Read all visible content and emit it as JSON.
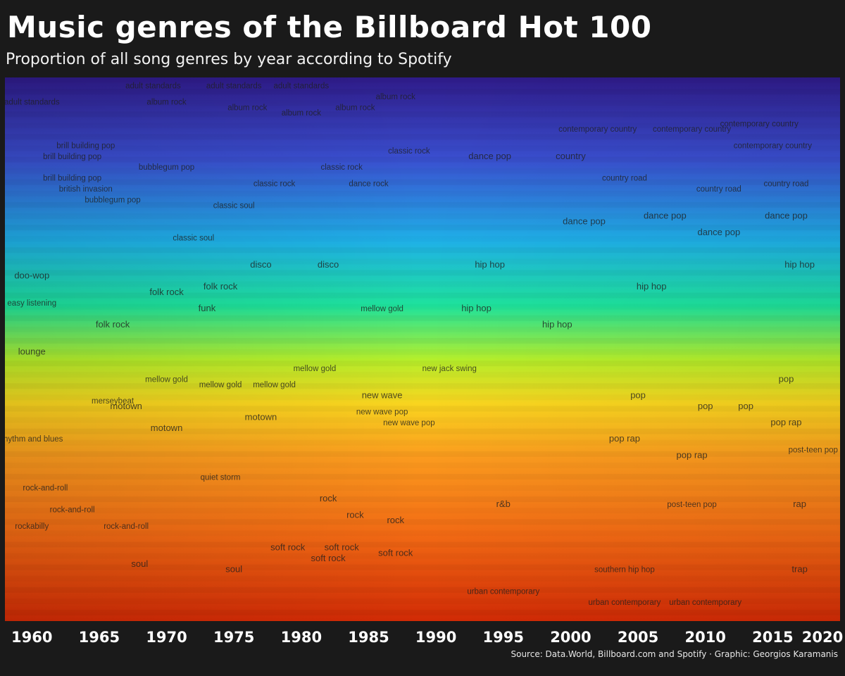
{
  "title": "Music genres of the Billboard Hot 100",
  "subtitle": "Proportion of all song genres by year according to Spotify",
  "source": "Source: Data.World, Billboard.com and Spotify · Graphic: Georgios Karamanis",
  "chart_data": {
    "type": "area",
    "title": "Music genres of the Billboard Hot 100",
    "subtitle": "Proportion of all song genres by year according to Spotify",
    "xlabel": "",
    "ylabel": "",
    "xlim": [
      1958,
      2020
    ],
    "ylim": [
      0,
      1
    ],
    "x_ticks": [
      1960,
      1965,
      1970,
      1975,
      1980,
      1985,
      1990,
      1995,
      2000,
      2005,
      2010,
      2015,
      2020
    ],
    "grid": false,
    "legend": "none",
    "color_scale": [
      "#2f1b8a",
      "#3a4fd0",
      "#1fb0e8",
      "#1ee39c",
      "#b7ef2a",
      "#f9d51f",
      "#fb9a1e",
      "#f26a14",
      "#d12a05"
    ],
    "labels": [
      {
        "text": "adult standards",
        "x": 1960,
        "y": 0.95
      },
      {
        "text": "adult standards",
        "x": 1969,
        "y": 0.98
      },
      {
        "text": "adult standards",
        "x": 1975,
        "y": 0.98
      },
      {
        "text": "adult standards",
        "x": 1980,
        "y": 0.98
      },
      {
        "text": "album rock",
        "x": 1970,
        "y": 0.95
      },
      {
        "text": "album rock",
        "x": 1976,
        "y": 0.94
      },
      {
        "text": "album rock",
        "x": 1980,
        "y": 0.93
      },
      {
        "text": "album rock",
        "x": 1984,
        "y": 0.94
      },
      {
        "text": "album rock",
        "x": 1987,
        "y": 0.96
      },
      {
        "text": "brill building pop",
        "x": 1964,
        "y": 0.87
      },
      {
        "text": "brill building pop",
        "x": 1963,
        "y": 0.85
      },
      {
        "text": "brill building pop",
        "x": 1963,
        "y": 0.81
      },
      {
        "text": "bubblegum pop",
        "x": 1970,
        "y": 0.83
      },
      {
        "text": "bubblegum pop",
        "x": 1966,
        "y": 0.77
      },
      {
        "text": "british invasion",
        "x": 1964,
        "y": 0.79
      },
      {
        "text": "classic rock",
        "x": 1983,
        "y": 0.83
      },
      {
        "text": "classic rock",
        "x": 1988,
        "y": 0.86
      },
      {
        "text": "classic rock",
        "x": 1978,
        "y": 0.8
      },
      {
        "text": "classic soul",
        "x": 1972,
        "y": 0.7
      },
      {
        "text": "classic soul",
        "x": 1975,
        "y": 0.76
      },
      {
        "text": "dance rock",
        "x": 1985,
        "y": 0.8
      },
      {
        "text": "dance pop",
        "x": 1994,
        "y": 0.85
      },
      {
        "text": "dance pop",
        "x": 2001,
        "y": 0.73
      },
      {
        "text": "dance pop",
        "x": 2007,
        "y": 0.74
      },
      {
        "text": "dance pop",
        "x": 2011,
        "y": 0.71
      },
      {
        "text": "dance pop",
        "x": 2016,
        "y": 0.74
      },
      {
        "text": "contemporary country",
        "x": 2002,
        "y": 0.9
      },
      {
        "text": "contemporary country",
        "x": 2009,
        "y": 0.9
      },
      {
        "text": "contemporary country",
        "x": 2014,
        "y": 0.91
      },
      {
        "text": "contemporary country",
        "x": 2015,
        "y": 0.87
      },
      {
        "text": "country road",
        "x": 2004,
        "y": 0.81
      },
      {
        "text": "country road",
        "x": 2011,
        "y": 0.79
      },
      {
        "text": "country road",
        "x": 2016,
        "y": 0.8
      },
      {
        "text": "country",
        "x": 2000,
        "y": 0.85
      },
      {
        "text": "disco",
        "x": 1982,
        "y": 0.65
      },
      {
        "text": "disco",
        "x": 1977,
        "y": 0.65
      },
      {
        "text": "folk rock",
        "x": 1970,
        "y": 0.6
      },
      {
        "text": "folk rock",
        "x": 1974,
        "y": 0.61
      },
      {
        "text": "folk rock",
        "x": 1966,
        "y": 0.54
      },
      {
        "text": "funk",
        "x": 1973,
        "y": 0.57
      },
      {
        "text": "doo-wop",
        "x": 1960,
        "y": 0.63
      },
      {
        "text": "easy listening",
        "x": 1960,
        "y": 0.58
      },
      {
        "text": "lounge",
        "x": 1960,
        "y": 0.49
      },
      {
        "text": "hip hop",
        "x": 1994,
        "y": 0.65
      },
      {
        "text": "hip hop",
        "x": 1993,
        "y": 0.57
      },
      {
        "text": "hip hop",
        "x": 1999,
        "y": 0.54
      },
      {
        "text": "hip hop",
        "x": 2006,
        "y": 0.61
      },
      {
        "text": "hip hop",
        "x": 2017,
        "y": 0.65
      },
      {
        "text": "mellow gold",
        "x": 1986,
        "y": 0.57
      },
      {
        "text": "mellow gold",
        "x": 1981,
        "y": 0.46
      },
      {
        "text": "mellow gold",
        "x": 1978,
        "y": 0.43
      },
      {
        "text": "mellow gold",
        "x": 1974,
        "y": 0.43
      },
      {
        "text": "mellow gold",
        "x": 1970,
        "y": 0.44
      },
      {
        "text": "new jack swing",
        "x": 1991,
        "y": 0.46
      },
      {
        "text": "new wave",
        "x": 1986,
        "y": 0.41
      },
      {
        "text": "new wave pop",
        "x": 1986,
        "y": 0.38
      },
      {
        "text": "new wave pop",
        "x": 1988,
        "y": 0.36
      },
      {
        "text": "merseybeat",
        "x": 1966,
        "y": 0.4
      },
      {
        "text": "motown",
        "x": 1967,
        "y": 0.39
      },
      {
        "text": "motown",
        "x": 1970,
        "y": 0.35
      },
      {
        "text": "motown",
        "x": 1977,
        "y": 0.37
      },
      {
        "text": "rhythm and blues",
        "x": 1960,
        "y": 0.33
      },
      {
        "text": "rock-and-roll",
        "x": 1961,
        "y": 0.24
      },
      {
        "text": "rock-and-roll",
        "x": 1963,
        "y": 0.2
      },
      {
        "text": "rock-and-roll",
        "x": 1967,
        "y": 0.17
      },
      {
        "text": "rockabilly",
        "x": 1960,
        "y": 0.17
      },
      {
        "text": "quiet storm",
        "x": 1974,
        "y": 0.26
      },
      {
        "text": "rock",
        "x": 1982,
        "y": 0.22
      },
      {
        "text": "rock",
        "x": 1984,
        "y": 0.19
      },
      {
        "text": "rock",
        "x": 1987,
        "y": 0.18
      },
      {
        "text": "soft rock",
        "x": 1979,
        "y": 0.13
      },
      {
        "text": "soft rock",
        "x": 1983,
        "y": 0.13
      },
      {
        "text": "soft rock",
        "x": 1987,
        "y": 0.12
      },
      {
        "text": "soft rock",
        "x": 1982,
        "y": 0.11
      },
      {
        "text": "soul",
        "x": 1968,
        "y": 0.1
      },
      {
        "text": "soul",
        "x": 1975,
        "y": 0.09
      },
      {
        "text": "pop",
        "x": 2005,
        "y": 0.41
      },
      {
        "text": "pop",
        "x": 2010,
        "y": 0.39
      },
      {
        "text": "pop",
        "x": 2013,
        "y": 0.39
      },
      {
        "text": "pop",
        "x": 2016,
        "y": 0.44
      },
      {
        "text": "pop rap",
        "x": 2004,
        "y": 0.33
      },
      {
        "text": "pop rap",
        "x": 2009,
        "y": 0.3
      },
      {
        "text": "pop rap",
        "x": 2016,
        "y": 0.36
      },
      {
        "text": "post-teen pop",
        "x": 2009,
        "y": 0.21
      },
      {
        "text": "post-teen pop",
        "x": 2018,
        "y": 0.31
      },
      {
        "text": "rap",
        "x": 2017,
        "y": 0.21
      },
      {
        "text": "trap",
        "x": 2017,
        "y": 0.09
      },
      {
        "text": "southern hip hop",
        "x": 2004,
        "y": 0.09
      },
      {
        "text": "urban contemporary",
        "x": 1995,
        "y": 0.05
      },
      {
        "text": "urban contemporary",
        "x": 2004,
        "y": 0.03
      },
      {
        "text": "urban contemporary",
        "x": 2010,
        "y": 0.03
      },
      {
        "text": "r&b",
        "x": 1995,
        "y": 0.21
      }
    ]
  }
}
